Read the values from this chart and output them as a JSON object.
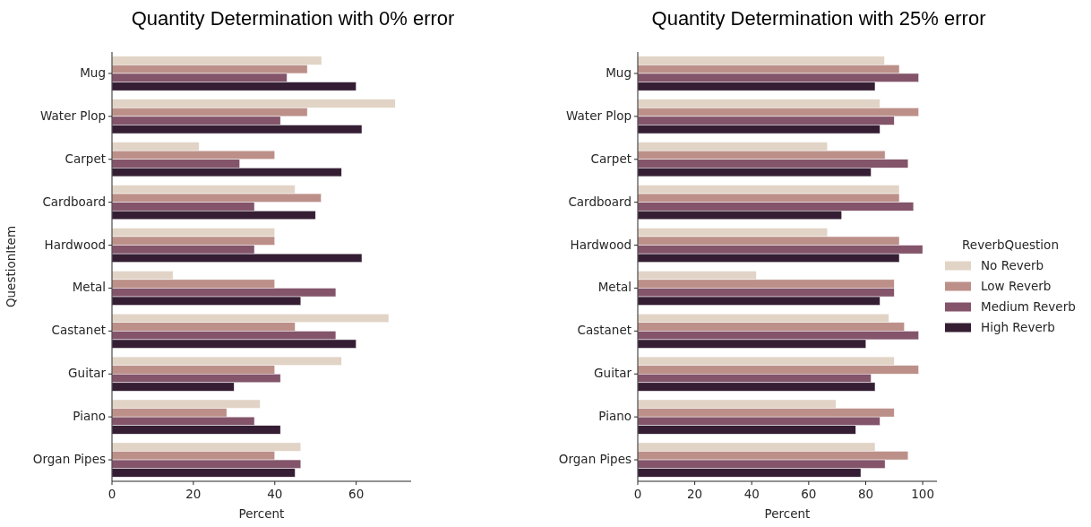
{
  "chart_data": [
    {
      "type": "bar",
      "orientation": "horizontal",
      "title": "Quantity Determination with 0% error",
      "xlabel": "Percent",
      "ylabel": "QuestionItem",
      "categories": [
        "Mug",
        "Water Plop",
        "Carpet",
        "Cardboard",
        "Hardwood",
        "Metal",
        "Castanet",
        "Guitar",
        "Piano",
        "Organ Pipes"
      ],
      "series": [
        {
          "color": "#e1d4c6",
          "values": [
            51.5,
            69.6,
            21.4,
            45,
            40,
            15,
            68,
            56.4,
            36.4,
            46.4
          ]
        },
        {
          "color": "#bc9089",
          "values": [
            48,
            48,
            40,
            51.4,
            40,
            40,
            45,
            40,
            28.2,
            40
          ]
        },
        {
          "color": "#83546a",
          "values": [
            43,
            41.4,
            31.4,
            35,
            35,
            55,
            55,
            41.4,
            35,
            46.4
          ]
        },
        {
          "color": "#351e34",
          "values": [
            60,
            61.4,
            56.4,
            50,
            61.4,
            46.4,
            60,
            30,
            41.4,
            45
          ]
        }
      ],
      "xlim": [
        0,
        73.5
      ],
      "xticks": [
        0,
        20,
        40,
        60
      ]
    },
    {
      "type": "bar",
      "orientation": "horizontal",
      "title": "Quantity Determination with 25% error",
      "xlabel": "Percent",
      "categories": [
        "Mug",
        "Water Plop",
        "Carpet",
        "Cardboard",
        "Hardwood",
        "Metal",
        "Castanet",
        "Guitar",
        "Piano",
        "Organ Pipes"
      ],
      "series": [
        {
          "name": "No Reverb",
          "color": "#e1d4c6",
          "values": [
            86.6,
            85,
            66.6,
            91.8,
            66.6,
            41.6,
            88.1,
            90,
            69.6,
            83.3
          ]
        },
        {
          "name": "Low Reverb",
          "color": "#bc9089",
          "values": [
            91.8,
            98.6,
            86.8,
            91.8,
            91.8,
            90,
            93.6,
            98.6,
            90,
            94.9
          ]
        },
        {
          "name": "Medium Reverb",
          "color": "#83546a",
          "values": [
            98.6,
            90,
            94.9,
            96.8,
            100,
            90,
            98.6,
            81.9,
            85,
            86.8
          ]
        },
        {
          "name": "High Reverb",
          "color": "#351e34",
          "values": [
            83.3,
            85,
            81.9,
            71.6,
            91.8,
            85,
            80.1,
            83.3,
            76.5,
            78.3
          ]
        }
      ],
      "xlim": [
        0,
        105
      ],
      "xticks": [
        0,
        20,
        40,
        60,
        80,
        100
      ],
      "legend": "right",
      "legend_title": "ReverbQuestion"
    }
  ]
}
